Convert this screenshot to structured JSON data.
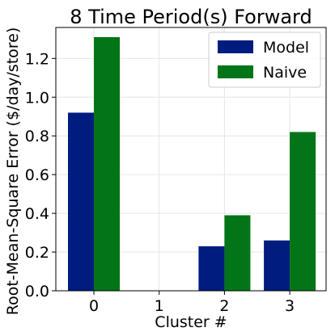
{
  "chart_data": {
    "type": "bar",
    "title": "8 Time Period(s) Forward",
    "xlabel": "Cluster #",
    "ylabel": "Root-Mean-Square Error ($/day/store)",
    "categories": [
      "0",
      "1",
      "2",
      "3"
    ],
    "series": [
      {
        "name": "Model",
        "color": "#001c7f",
        "values": [
          0.92,
          null,
          0.23,
          0.26
        ]
      },
      {
        "name": "Naive",
        "color": "#017517",
        "values": [
          1.31,
          null,
          0.39,
          0.82
        ]
      }
    ],
    "ylim": [
      0,
      1.36
    ],
    "yticks": [
      0.0,
      0.2,
      0.4,
      0.6,
      0.8,
      1.0,
      1.2
    ],
    "ytick_labels": [
      "0.0",
      "0.2",
      "0.4",
      "0.6",
      "0.8",
      "1.0",
      "1.2"
    ],
    "grid": true,
    "legend_position": "top-right"
  }
}
